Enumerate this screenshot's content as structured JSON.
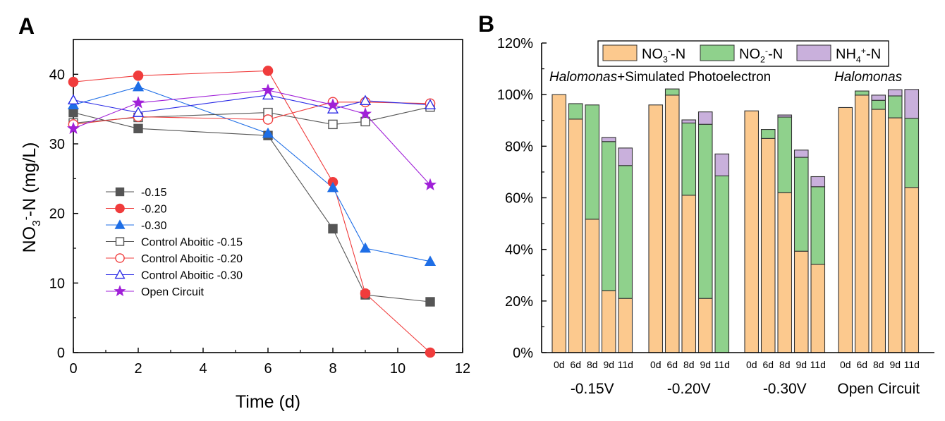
{
  "chart_data": [
    {
      "panel": "A",
      "type": "line",
      "xlabel": "Time (d)",
      "ylabel_main": "NO",
      "ylabel_sub": "3",
      "ylabel_sup": "-",
      "ylabel_rest": "-N (mg/L)",
      "xlim": [
        0,
        12
      ],
      "ylim": [
        0,
        45
      ],
      "xticks": [
        0,
        2,
        4,
        6,
        8,
        10,
        12
      ],
      "yticks": [
        0,
        10,
        20,
        30,
        40
      ],
      "legend_position": "lower-left",
      "series": [
        {
          "name": "-0.15",
          "color": "#555555",
          "marker": "square",
          "filled": true,
          "x": [
            0,
            2,
            6,
            8,
            9,
            11
          ],
          "y": [
            34.5,
            32.2,
            31.2,
            17.8,
            8.3,
            7.3
          ]
        },
        {
          "name": "-0.20",
          "color": "#f03c3c",
          "marker": "circle",
          "filled": true,
          "x": [
            0,
            2,
            6,
            8,
            9,
            11
          ],
          "y": [
            38.9,
            39.8,
            40.5,
            24.5,
            8.5,
            0
          ]
        },
        {
          "name": "-0.30",
          "color": "#1e6ee6",
          "marker": "triangle",
          "filled": true,
          "x": [
            0,
            2,
            6,
            8,
            9,
            11
          ],
          "y": [
            35.6,
            38.2,
            31.5,
            23.7,
            15.0,
            13.1
          ]
        },
        {
          "name": "Control Aboitic -0.15",
          "color": "#555555",
          "marker": "square",
          "filled": false,
          "x": [
            0,
            2,
            6,
            8,
            9,
            11
          ],
          "y": [
            33.0,
            33.8,
            34.5,
            32.8,
            33.2,
            35.3
          ]
        },
        {
          "name": "Control Aboitic -0.20",
          "color": "#f03c3c",
          "marker": "circle",
          "filled": false,
          "x": [
            0,
            2,
            6,
            8,
            9,
            11
          ],
          "y": [
            32.8,
            33.9,
            33.5,
            36.0,
            36.0,
            35.8
          ]
        },
        {
          "name": "Control Aboitic -0.30",
          "color": "#2a2ae6",
          "marker": "triangle",
          "filled": false,
          "x": [
            0,
            2,
            6,
            8,
            9,
            11
          ],
          "y": [
            36.3,
            34.5,
            37.0,
            35.0,
            36.2,
            35.6
          ]
        },
        {
          "name": "Open Circuit",
          "color": "#a020d8",
          "marker": "star",
          "filled": true,
          "x": [
            0,
            2,
            6,
            8,
            9,
            11
          ],
          "y": [
            32.2,
            35.9,
            37.7,
            35.6,
            34.3,
            24.1
          ]
        }
      ]
    },
    {
      "panel": "B",
      "type": "bar",
      "stacked": true,
      "ylim": [
        0,
        120
      ],
      "yticks": [
        "0%",
        "20%",
        "40%",
        "60%",
        "80%",
        "100%",
        "120%"
      ],
      "ytick_values": [
        0,
        20,
        40,
        60,
        80,
        100,
        120
      ],
      "legend_position": "top",
      "legend": [
        {
          "base": "NO",
          "sub": "3",
          "sup": "-",
          "rest": "-N",
          "color": "#fcc98e"
        },
        {
          "base": "NO",
          "sub": "2",
          "sup": "-",
          "rest": "-N",
          "color": "#8fd18c"
        },
        {
          "base": "NH",
          "sub": "4",
          "sup": "+",
          "rest": "-N",
          "color": "#c9b0dc"
        }
      ],
      "annotation_left_italic": "Halomonas",
      "annotation_left_rest": "+Simulated Photoelectron",
      "annotation_right_italic": "Halomonas",
      "group_labels": [
        "-0.15V",
        "-0.20V",
        "-0.30V",
        "Open Circuit"
      ],
      "categories": [
        "0d",
        "6d",
        "8d",
        "9d",
        "11d"
      ],
      "groups": [
        {
          "name": "-0.15V",
          "NO3": [
            100,
            90.5,
            51.7,
            24.0,
            21.0
          ],
          "NO2": [
            0,
            6.0,
            44.3,
            57.8,
            51.5
          ],
          "NH4": [
            0,
            0,
            0,
            1.6,
            6.8
          ]
        },
        {
          "name": "-0.20V",
          "NO3": [
            96.0,
            99.8,
            61.0,
            21.0,
            0
          ],
          "NO2": [
            0,
            2.4,
            28.0,
            67.5,
            68.5
          ],
          "NH4": [
            0,
            0,
            1.2,
            4.8,
            8.5
          ]
        },
        {
          "name": "-0.30V",
          "NO3": [
            93.7,
            83.0,
            62.0,
            39.3,
            34.2
          ],
          "NO2": [
            0,
            3.5,
            29.3,
            36.4,
            30.1
          ],
          "NH4": [
            0,
            0,
            0.8,
            2.8,
            3.9
          ]
        },
        {
          "name": "Open Circuit",
          "NO3": [
            95.0,
            99.8,
            94.3,
            91.0,
            64.0
          ],
          "NO2": [
            0,
            1.6,
            3.5,
            8.5,
            26.8
          ],
          "NH4": [
            0,
            0,
            2.0,
            2.4,
            11.2
          ]
        }
      ]
    }
  ],
  "labels": {
    "panel_a": "A",
    "panel_b": "B"
  }
}
